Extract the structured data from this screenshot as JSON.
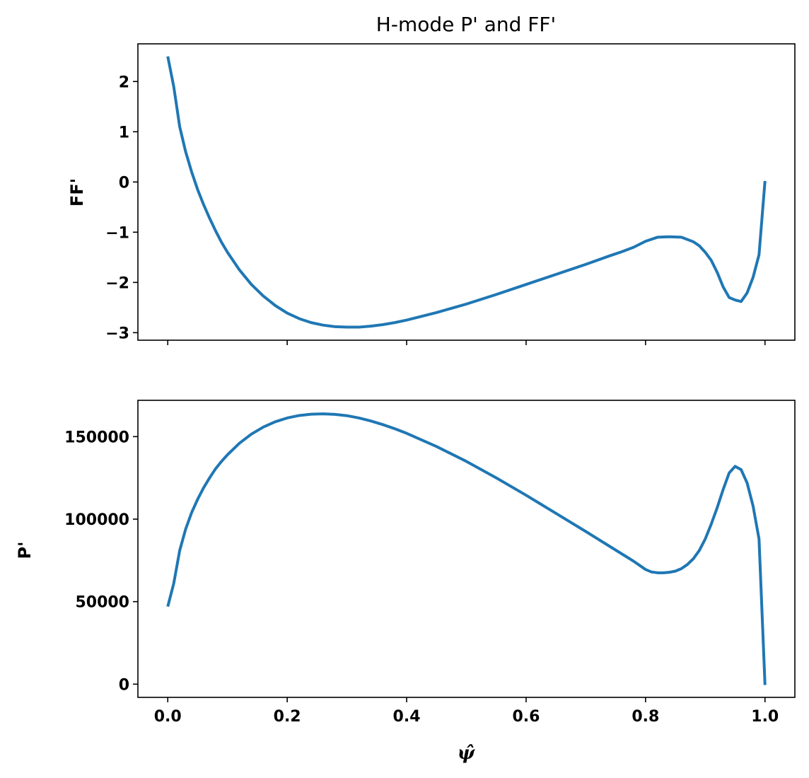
{
  "chart_data": [
    {
      "type": "line",
      "title": "H-mode P' and FF'",
      "ylabel": "FF'",
      "xlabel": "",
      "xlim": [
        -0.05,
        1.05
      ],
      "ylim": [
        -3.15,
        2.75
      ],
      "xticks": [
        0.0,
        0.2,
        0.4,
        0.6,
        0.8,
        1.0
      ],
      "show_xtick_labels": false,
      "yticks": [
        {
          "value": -3,
          "label": "−3"
        },
        {
          "value": -2,
          "label": "−2"
        },
        {
          "value": -1,
          "label": "−1"
        },
        {
          "value": 0,
          "label": "0"
        },
        {
          "value": 1,
          "label": "1"
        },
        {
          "value": 2,
          "label": "2"
        }
      ],
      "grid": false,
      "color": "#1f77b4",
      "series": [
        {
          "x": [
            0.0,
            0.01,
            0.02,
            0.03,
            0.04,
            0.05,
            0.06,
            0.07,
            0.08,
            0.09,
            0.1,
            0.12,
            0.14,
            0.16,
            0.18,
            0.2,
            0.22,
            0.24,
            0.26,
            0.28,
            0.3,
            0.32,
            0.34,
            0.36,
            0.38,
            0.4,
            0.45,
            0.5,
            0.55,
            0.6,
            0.65,
            0.7,
            0.74,
            0.76,
            0.78,
            0.79,
            0.8,
            0.82,
            0.84,
            0.86,
            0.88,
            0.89,
            0.9,
            0.91,
            0.92,
            0.93,
            0.94,
            0.95,
            0.96,
            0.97,
            0.98,
            0.99,
            1.0
          ],
          "y": [
            2.5,
            1.9,
            1.1,
            0.6,
            0.2,
            -0.15,
            -0.45,
            -0.72,
            -0.97,
            -1.2,
            -1.4,
            -1.75,
            -2.04,
            -2.27,
            -2.46,
            -2.61,
            -2.72,
            -2.8,
            -2.85,
            -2.88,
            -2.89,
            -2.89,
            -2.87,
            -2.84,
            -2.8,
            -2.75,
            -2.6,
            -2.43,
            -2.24,
            -2.04,
            -1.84,
            -1.64,
            -1.47,
            -1.39,
            -1.3,
            -1.24,
            -1.18,
            -1.1,
            -1.09,
            -1.1,
            -1.19,
            -1.27,
            -1.4,
            -1.56,
            -1.8,
            -2.09,
            -2.3,
            -2.35,
            -2.38,
            -2.21,
            -1.9,
            -1.45,
            0.02
          ]
        }
      ]
    },
    {
      "type": "line",
      "title": "",
      "ylabel": "P'",
      "xlabel": "ψ̂",
      "xlim": [
        -0.05,
        1.05
      ],
      "ylim": [
        -8000,
        172000
      ],
      "xticks": [
        {
          "value": 0.0,
          "label": "0.0"
        },
        {
          "value": 0.2,
          "label": "0.2"
        },
        {
          "value": 0.4,
          "label": "0.4"
        },
        {
          "value": 0.6,
          "label": "0.6"
        },
        {
          "value": 0.8,
          "label": "0.8"
        },
        {
          "value": 1.0,
          "label": "1.0"
        }
      ],
      "yticks": [
        {
          "value": 0,
          "label": "0"
        },
        {
          "value": 50000,
          "label": "50000"
        },
        {
          "value": 100000,
          "label": "100000"
        },
        {
          "value": 150000,
          "label": "150000"
        }
      ],
      "grid": false,
      "color": "#1f77b4",
      "series": [
        {
          "x": [
            0.0,
            0.01,
            0.02,
            0.03,
            0.04,
            0.05,
            0.06,
            0.07,
            0.08,
            0.09,
            0.1,
            0.12,
            0.14,
            0.16,
            0.18,
            0.2,
            0.22,
            0.24,
            0.26,
            0.28,
            0.3,
            0.32,
            0.34,
            0.36,
            0.38,
            0.4,
            0.45,
            0.5,
            0.55,
            0.6,
            0.65,
            0.7,
            0.74,
            0.76,
            0.78,
            0.79,
            0.8,
            0.81,
            0.82,
            0.83,
            0.84,
            0.85,
            0.86,
            0.87,
            0.88,
            0.89,
            0.9,
            0.91,
            0.92,
            0.93,
            0.94,
            0.95,
            0.96,
            0.97,
            0.98,
            0.99,
            1.0
          ],
          "y": [
            47000,
            61000,
            81000,
            94000,
            104000,
            112000,
            119000,
            125000,
            130500,
            135000,
            139000,
            146000,
            151500,
            155800,
            159000,
            161300,
            162800,
            163600,
            163800,
            163500,
            162700,
            161300,
            159500,
            157300,
            154800,
            152000,
            144000,
            135000,
            125000,
            114500,
            103500,
            92500,
            83500,
            79000,
            74500,
            72000,
            69500,
            68000,
            67500,
            67500,
            67800,
            68500,
            70000,
            72500,
            76000,
            81000,
            88000,
            97000,
            107000,
            118000,
            128000,
            132000,
            130000,
            122000,
            108000,
            88000,
            -500
          ]
        }
      ]
    }
  ]
}
